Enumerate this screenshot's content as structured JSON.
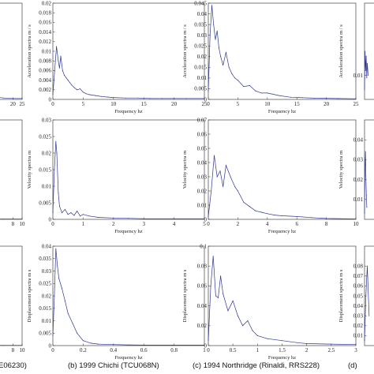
{
  "series_color": "#2b3590",
  "captions": [
    {
      "id": "a",
      "text": "E06230)"
    },
    {
      "id": "b",
      "text": "(b)  1999 Chichi (TCU068N)"
    },
    {
      "id": "c",
      "text": "(c)  1994 Northridge (Rinaldi, RRS228)"
    },
    {
      "id": "d",
      "text": "(d)"
    }
  ],
  "chart_data": [
    {
      "id": "a-acc",
      "type": "line",
      "xlim": [
        0,
        25
      ],
      "ylim": [
        0,
        0.02
      ],
      "xticks": [
        "20",
        "25"
      ],
      "yticks": [],
      "xlabel": "",
      "ylabel": "",
      "x": [
        0,
        5,
        10,
        15,
        20,
        25
      ],
      "y": [
        0.0004,
        0.0008,
        0.0005,
        0.0003,
        0.0002,
        0.0002
      ]
    },
    {
      "id": "a-vel",
      "type": "line",
      "xlim": [
        0,
        10
      ],
      "ylim": [
        0,
        0.03
      ],
      "xticks": [
        "8",
        "10"
      ],
      "yticks": [],
      "xlabel": "",
      "ylabel": "",
      "x": [
        0,
        2,
        4,
        6,
        8,
        10
      ],
      "y": [
        0.0001,
        0.0001,
        0.0001,
        0.0001,
        0.0001,
        0.0001
      ]
    },
    {
      "id": "a-disp",
      "type": "line",
      "xlim": [
        0,
        10
      ],
      "ylim": [
        0,
        0.04
      ],
      "xticks": [
        "8",
        "10"
      ],
      "yticks": [],
      "xlabel": "",
      "ylabel": "",
      "x": [
        0,
        2,
        4,
        6,
        8,
        10
      ],
      "y": [
        0.0001,
        0.0001,
        0.0001,
        0.0001,
        0.0001,
        0.0001
      ]
    },
    {
      "id": "b-acc",
      "type": "line",
      "xlim": [
        0,
        25
      ],
      "ylim": [
        0,
        0.02
      ],
      "xticks": [
        "0",
        "5",
        "10",
        "15",
        "20",
        "25"
      ],
      "yticks": [
        "0",
        "0.002",
        "0.004",
        "0.006",
        "0.008",
        "0.01",
        "0.012",
        "0.014",
        "0.016",
        "0.018",
        "0.02"
      ],
      "xlabel": "Frequency hz",
      "ylabel": "Acceleration spectra m / s",
      "x": [
        0,
        0.3,
        0.6,
        0.9,
        1.1,
        1.3,
        1.6,
        1.9,
        2.2,
        2.5,
        2.8,
        3.1,
        3.5,
        4,
        4.5,
        5,
        5.5,
        6,
        7,
        8,
        9,
        10,
        12,
        14,
        16,
        18,
        20,
        22,
        25
      ],
      "y": [
        0.001,
        0.006,
        0.011,
        0.008,
        0.0065,
        0.009,
        0.006,
        0.005,
        0.0045,
        0.004,
        0.0035,
        0.003,
        0.0025,
        0.002,
        0.0022,
        0.0015,
        0.0012,
        0.001,
        0.0008,
        0.0006,
        0.0005,
        0.0004,
        0.0003,
        0.0003,
        0.0002,
        0.0002,
        0.0002,
        0.0002,
        0.0002
      ]
    },
    {
      "id": "b-vel",
      "type": "line",
      "xlim": [
        0,
        5
      ],
      "ylim": [
        0,
        0.03
      ],
      "xticks": [
        "0",
        "1",
        "2",
        "3",
        "4",
        "5"
      ],
      "yticks": [
        "0",
        "0.005",
        "0.01",
        "0.015",
        "0.02",
        "0.025",
        "0.03"
      ],
      "xlabel": "Frequency hz",
      "ylabel": "Velocity spectra m",
      "x": [
        0,
        0.05,
        0.1,
        0.13,
        0.18,
        0.22,
        0.3,
        0.4,
        0.5,
        0.6,
        0.7,
        0.8,
        0.9,
        1,
        1.2,
        1.5,
        2,
        2.5,
        3,
        4,
        5
      ],
      "y": [
        0.002,
        0.015,
        0.0235,
        0.02,
        0.008,
        0.004,
        0.002,
        0.003,
        0.0015,
        0.002,
        0.0012,
        0.0025,
        0.001,
        0.0015,
        0.001,
        0.0006,
        0.0004,
        0.0003,
        0.0002,
        0.0002,
        0.0002
      ]
    },
    {
      "id": "b-disp",
      "type": "line",
      "xlim": [
        0,
        1
      ],
      "ylim": [
        0,
        0.04
      ],
      "xticks": [
        "0",
        "0.2",
        "0.4",
        "0.6",
        "0.8",
        "1"
      ],
      "yticks": [
        "0",
        "0.005",
        "0.01",
        "0.015",
        "0.02",
        "0.025",
        "0.03",
        "0.035",
        "0.04"
      ],
      "xlabel": "Frequency hz",
      "ylabel": "Displacement spectra m s",
      "x": [
        0,
        0.01,
        0.02,
        0.03,
        0.04,
        0.06,
        0.08,
        0.1,
        0.13,
        0.16,
        0.2,
        0.25,
        0.3,
        0.4,
        0.5,
        0.6,
        0.8,
        1
      ],
      "y": [
        0.004,
        0.02,
        0.039,
        0.032,
        0.027,
        0.023,
        0.018,
        0.013,
        0.009,
        0.005,
        0.002,
        0.001,
        0.0006,
        0.0004,
        0.0003,
        0.0002,
        0.0002,
        0.0002
      ]
    },
    {
      "id": "c-acc",
      "type": "line",
      "xlim": [
        0,
        25
      ],
      "ylim": [
        0,
        0.045
      ],
      "xticks": [
        "0",
        "5",
        "10",
        "15",
        "20",
        "25"
      ],
      "yticks": [
        "0",
        "0.005",
        "0.01",
        "0.015",
        "0.02",
        "0.025",
        "0.03",
        "0.035",
        "0.04",
        "0.045"
      ],
      "xlabel": "Frequency hz",
      "ylabel": "Acceleration spectra m / s",
      "x": [
        0,
        0.3,
        0.6,
        0.9,
        1.2,
        1.5,
        1.8,
        2.1,
        2.5,
        3,
        3.5,
        4,
        4.5,
        5,
        6,
        7,
        8,
        9,
        10,
        12,
        14,
        16,
        18,
        20,
        22,
        25
      ],
      "y": [
        0.004,
        0.03,
        0.044,
        0.035,
        0.028,
        0.032,
        0.024,
        0.02,
        0.016,
        0.022,
        0.015,
        0.012,
        0.01,
        0.009,
        0.006,
        0.0065,
        0.004,
        0.003,
        0.003,
        0.0018,
        0.001,
        0.0008,
        0.0006,
        0.0005,
        0.0004,
        0.0003
      ]
    },
    {
      "id": "c-vel",
      "type": "line",
      "xlim": [
        0,
        10
      ],
      "ylim": [
        0,
        0.07
      ],
      "xticks": [
        "0",
        "2",
        "4",
        "6",
        "8",
        "10"
      ],
      "yticks": [
        "0",
        "0.01",
        "0.02",
        "0.03",
        "0.04",
        "0.05",
        "0.06",
        "0.07"
      ],
      "xlabel": "Frequency hz",
      "ylabel": "Velocity spectra m",
      "x": [
        0,
        0.2,
        0.4,
        0.6,
        0.8,
        1,
        1.2,
        1.5,
        1.8,
        2,
        2.4,
        2.8,
        3.2,
        3.6,
        4,
        4.5,
        5,
        6,
        7,
        8,
        10
      ],
      "y": [
        0.002,
        0.02,
        0.045,
        0.03,
        0.034,
        0.023,
        0.038,
        0.03,
        0.023,
        0.02,
        0.012,
        0.009,
        0.006,
        0.005,
        0.004,
        0.003,
        0.0025,
        0.002,
        0.0012,
        0.0006,
        0.0003
      ]
    },
    {
      "id": "c-disp",
      "type": "line",
      "xlim": [
        0,
        3
      ],
      "ylim": [
        0,
        0.1
      ],
      "xticks": [
        "0",
        "0.5",
        "1",
        "1.5",
        "2",
        "2.5",
        "3"
      ],
      "yticks": [
        "0",
        "0.02",
        "0.04",
        "0.06",
        "0.08",
        "0.1"
      ],
      "xlabel": "Frequency hz",
      "ylabel": "Displacement spectra m s",
      "x": [
        0,
        0.05,
        0.1,
        0.15,
        0.2,
        0.25,
        0.3,
        0.4,
        0.5,
        0.6,
        0.7,
        0.8,
        0.9,
        1,
        1.2,
        1.5,
        1.8,
        2,
        2.5,
        3
      ],
      "y": [
        0.005,
        0.06,
        0.09,
        0.05,
        0.048,
        0.07,
        0.052,
        0.035,
        0.045,
        0.03,
        0.02,
        0.025,
        0.015,
        0.01,
        0.007,
        0.005,
        0.003,
        0.002,
        0.0015,
        0.001
      ]
    },
    {
      "id": "d-acc",
      "type": "line",
      "xlim": [
        0,
        25
      ],
      "ylim": [
        0,
        0.04
      ],
      "xticks": [],
      "yticks": [
        "0.01"
      ],
      "xlabel": "",
      "ylabel": "Acceleration spectra m / s",
      "x": [
        0,
        0.3,
        0.6,
        0.9,
        1.2,
        1.5,
        2
      ],
      "y": [
        0.004,
        0.02,
        0.012,
        0.018,
        0.009,
        0.015,
        0.01
      ]
    },
    {
      "id": "d-vel",
      "type": "line",
      "xlim": [
        0,
        5
      ],
      "ylim": [
        0,
        0.05
      ],
      "xticks": [],
      "yticks": [
        "0.01",
        "0.02",
        "0.03",
        "0.04"
      ],
      "xlabel": "",
      "ylabel": "Velocity spectra m",
      "x": [
        0,
        0.05,
        0.1,
        0.15,
        0.2,
        0.25
      ],
      "y": [
        0.003,
        0.025,
        0.034,
        0.022,
        0.012,
        0.006
      ]
    },
    {
      "id": "d-disp",
      "type": "line",
      "xlim": [
        0,
        1
      ],
      "ylim": [
        0,
        0.1
      ],
      "xticks": [],
      "yticks": [
        "0.01",
        "0.02",
        "0.03",
        "0.04",
        "0.05",
        "0.06",
        "0.07",
        "0.08"
      ],
      "xlabel": "",
      "ylabel": "Displacement spectra m s",
      "x": [
        0,
        0.03,
        0.06,
        0.1
      ],
      "y": [
        0.005,
        0.05,
        0.08,
        0.03
      ]
    }
  ]
}
